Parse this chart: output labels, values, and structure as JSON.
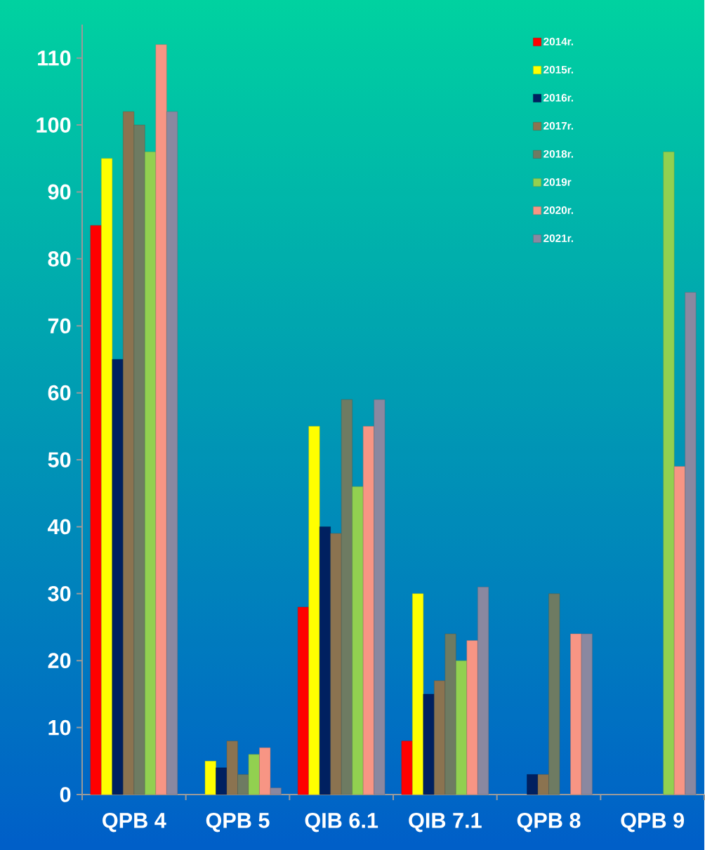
{
  "chart_data": {
    "type": "bar",
    "categories": [
      "QPB 4",
      "QPB 5",
      "QIB 6.1",
      "QIB 7.1",
      "QPB 8",
      "QPB 9"
    ],
    "series": [
      {
        "name": "2014r.",
        "color": "#ff0000",
        "values": [
          85,
          null,
          28,
          8,
          null,
          null
        ]
      },
      {
        "name": "2015r.",
        "color": "#ffff00",
        "values": [
          95,
          5,
          55,
          30,
          null,
          null
        ]
      },
      {
        "name": "2016r.",
        "color": "#002060",
        "values": [
          65,
          4,
          40,
          15,
          3,
          null
        ]
      },
      {
        "name": "2017r.",
        "color": "#8b7350",
        "values": [
          102,
          8,
          39,
          17,
          3,
          null
        ]
      },
      {
        "name": "2018r.",
        "color": "#6e7b62",
        "values": [
          100,
          3,
          59,
          24,
          30,
          null
        ]
      },
      {
        "name": "2019r",
        "color": "#92d050",
        "values": [
          96,
          6,
          46,
          20,
          null,
          96
        ]
      },
      {
        "name": "2020r.",
        "color": "#f79584",
        "values": [
          112,
          7,
          55,
          23,
          24,
          49
        ]
      },
      {
        "name": "2021r.",
        "color": "#8a88a0",
        "values": [
          102,
          1,
          59,
          31,
          24,
          75
        ]
      }
    ],
    "ylim": [
      0,
      115
    ],
    "yticks": [
      0,
      10,
      20,
      30,
      40,
      50,
      60,
      70,
      80,
      90,
      100,
      110
    ],
    "grid": false,
    "legend": "top right"
  }
}
